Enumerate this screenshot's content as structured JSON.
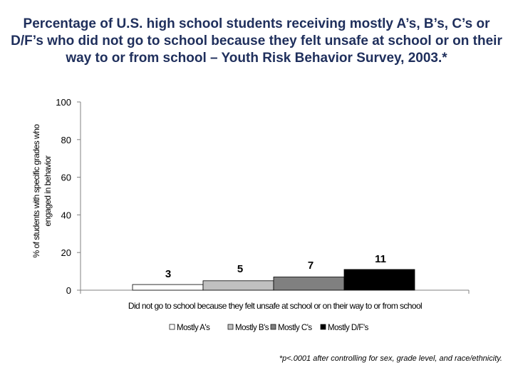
{
  "title": "Percentage of U.S. high school students receiving mostly A’s, B’s, C’s or D/F’s who did not go to school because they felt unsafe at school or on  their way to or from school – Youth Risk Behavior Survey, 2003.*",
  "footnote": "*p<.0001 after controlling for sex, grade level, and race/ethnicity.",
  "chart_data": {
    "type": "bar",
    "title": "Percentage of U.S. high school students receiving mostly A’s, B’s, C’s or D/F’s who did not go to school because they felt unsafe at school or on  their way to or from school – Youth Risk Behavior Survey, 2003.*",
    "categories": [
      "Did not go to school because they felt unsafe at school or on their way to or from school"
    ],
    "series": [
      {
        "name": "Mostly A's",
        "values": [
          3
        ],
        "color": "#ffffff"
      },
      {
        "name": "Mostly B's",
        "values": [
          5
        ],
        "color": "#c0c0c0"
      },
      {
        "name": "Mostly C's",
        "values": [
          7
        ],
        "color": "#808080"
      },
      {
        "name": "Mostly D/F's",
        "values": [
          11
        ],
        "color": "#000000"
      }
    ],
    "data_labels": [
      "3",
      "5",
      "7",
      "11"
    ],
    "xlabel": "Did not go to school because they felt unsafe at school or on their way to or from school",
    "ylabel_lines": [
      "% of students with specific grades who",
      "engaged in behavior"
    ],
    "ylim": [
      0,
      100
    ],
    "yticks": [
      0,
      20,
      40,
      60,
      80,
      100
    ],
    "grid": false,
    "legend_position": "bottom"
  }
}
